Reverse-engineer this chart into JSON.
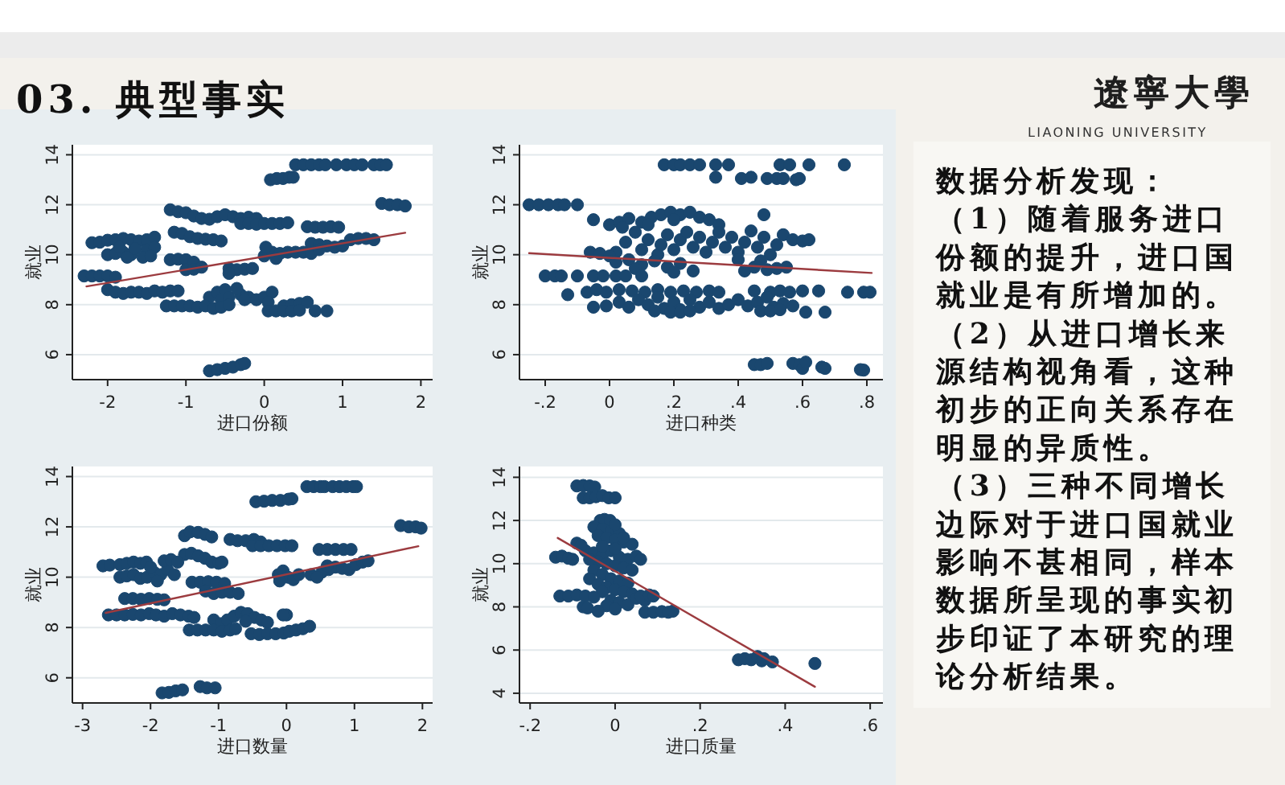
{
  "chart_data": [
    {
      "type": "other",
      "title": "03. 典型事实",
      "subtitle": "遼寧大學",
      "annotations": [
        "LIAONING UNIVERSITY"
      ]
    },
    {
      "type": "scatter",
      "xlabel": "进口份额",
      "ylabel": "就业",
      "xlim": [
        -2.45,
        2.15
      ],
      "ylim": [
        5,
        14.4
      ],
      "xticks": [
        -2,
        -1,
        0,
        1,
        2
      ],
      "yticks": [
        6,
        8,
        10,
        12,
        14
      ],
      "grid": "y",
      "marker": "circle",
      "series": [
        {
          "type": "scatter",
          "color": "#1a476f",
          "x": [
            0.4,
            0.5,
            0.6,
            0.7,
            0.78,
            0.92,
            1.05,
            1.15,
            1.25,
            1.4,
            1.48,
            1.56,
            0.08,
            0.16,
            0.24,
            0.32,
            0.37,
            1.5,
            1.6,
            1.7,
            1.8,
            -1.2,
            -1.1,
            -1.0,
            -0.9,
            -0.8,
            -0.7,
            -0.6,
            -0.5,
            -0.4,
            -0.3,
            -0.2,
            -0.1,
            -0.3,
            -0.2,
            -0.1,
            0.0,
            0.1,
            0.2,
            0.3,
            0.55,
            0.65,
            0.75,
            0.85,
            0.95,
            -1.15,
            -1.05,
            -0.95,
            -0.85,
            -0.75,
            -0.65,
            -0.55,
            -2.2,
            -2.1,
            -2.0,
            -1.9,
            -1.8,
            -1.7,
            -1.6,
            -1.5,
            -1.4,
            -2.0,
            -1.9,
            -1.8,
            -1.7,
            -1.5,
            -1.4,
            -1.85,
            -1.65,
            -1.55,
            -1.45,
            -1.75,
            0.6,
            0.7,
            0.8,
            0.9,
            1.0,
            1.1,
            1.2,
            1.3,
            1.4,
            0.0,
            0.1,
            0.2,
            0.3,
            0.4,
            0.5,
            0.6,
            0.15,
            0.02,
            0.7,
            -1.2,
            -1.1,
            -1.0,
            -0.9,
            -1.0,
            -0.9,
            -0.8,
            -0.45,
            -0.35,
            -0.25,
            -0.15,
            -0.45,
            -2.3,
            -2.2,
            -2.1,
            -2.0,
            -1.9,
            -2.0,
            -1.9,
            -1.8,
            -1.7,
            -1.6,
            -1.5,
            -1.4,
            -1.3,
            -1.2,
            -1.1,
            -0.7,
            -0.6,
            -0.5,
            -0.3,
            -0.2,
            -0.1,
            0.0,
            0.1,
            -0.55,
            -0.45,
            -0.35,
            -0.25,
            0.05,
            -1.25,
            -1.15,
            -1.05,
            -0.95,
            -0.85,
            -0.75,
            -0.65,
            -0.55,
            -0.45,
            0.25,
            0.35,
            0.45,
            0.55,
            0.05,
            0.15,
            0.25,
            0.35,
            0.45,
            0.65,
            0.8,
            -0.7,
            -0.6,
            -0.5,
            -0.4,
            -0.3,
            -0.25
          ],
          "values": [
            13.6,
            13.6,
            13.6,
            13.6,
            13.6,
            13.6,
            13.6,
            13.6,
            13.6,
            13.6,
            13.6,
            13.6,
            13.0,
            13.05,
            13.05,
            13.1,
            13.1,
            12.05,
            12.0,
            12.0,
            11.95,
            11.8,
            11.72,
            11.68,
            11.55,
            11.45,
            11.42,
            11.52,
            11.6,
            11.52,
            11.45,
            11.5,
            11.45,
            11.25,
            11.25,
            11.22,
            11.25,
            11.25,
            11.25,
            11.28,
            11.12,
            11.1,
            11.1,
            11.12,
            11.1,
            10.9,
            10.85,
            10.72,
            10.65,
            10.62,
            10.6,
            10.55,
            10.48,
            10.5,
            10.58,
            10.6,
            10.65,
            10.6,
            10.55,
            10.6,
            10.7,
            10.0,
            10.05,
            10.1,
            10.0,
            10.2,
            10.3,
            10.3,
            10.25,
            9.9,
            9.95,
            9.9,
            10.45,
            10.4,
            10.35,
            10.3,
            10.35,
            10.6,
            10.65,
            10.65,
            10.6,
            9.95,
            10.1,
            10.05,
            10.1,
            10.1,
            10.1,
            10.05,
            9.85,
            10.3,
            10.2,
            9.8,
            9.82,
            9.8,
            9.7,
            9.4,
            9.42,
            9.5,
            9.45,
            9.4,
            9.42,
            9.45,
            9.25,
            9.15,
            9.15,
            9.15,
            9.15,
            9.1,
            8.6,
            8.5,
            8.45,
            8.5,
            8.5,
            8.45,
            8.55,
            8.5,
            8.55,
            8.55,
            8.3,
            8.5,
            8.6,
            8.4,
            8.3,
            8.2,
            8.3,
            8.5,
            8.2,
            8.3,
            8.65,
            8.2,
            8.1,
            7.95,
            7.95,
            7.95,
            7.95,
            7.9,
            7.95,
            7.85,
            7.9,
            8.0,
            7.95,
            8.0,
            8.05,
            8.1,
            7.75,
            7.75,
            7.75,
            7.75,
            7.78,
            7.75,
            7.75,
            5.35,
            5.4,
            5.45,
            5.5,
            5.6,
            5.65
          ]
        },
        {
          "type": "line",
          "color": "#9c3b3f",
          "marker": "none",
          "x": [
            -2.27,
            1.8
          ],
          "values": [
            8.73,
            10.88
          ]
        }
      ]
    },
    {
      "type": "scatter",
      "xlabel": "进口种类",
      "ylabel": "就业",
      "xlim": [
        -0.28,
        0.85
      ],
      "ylim": [
        5,
        14.4
      ],
      "xticks": [
        {
          "value": -0.2,
          "label": "-.2"
        },
        0,
        {
          "value": 0.2,
          "label": ".2"
        },
        {
          "value": 0.4,
          "label": ".4"
        },
        {
          "value": 0.6,
          "label": ".6"
        },
        {
          "value": 0.8,
          "label": ".8"
        }
      ],
      "yticks": [
        6,
        8,
        10,
        12,
        14
      ],
      "grid": "y",
      "marker": "circle",
      "series": [
        {
          "type": "scatter",
          "color": "#1a476f",
          "x": [
            0.17,
            0.2,
            0.22,
            0.25,
            0.28,
            0.33,
            0.37,
            0.53,
            0.56,
            0.62,
            0.73,
            0.33,
            0.41,
            0.44,
            0.49,
            0.52,
            0.54,
            0.58,
            0.59,
            -0.25,
            -0.22,
            -0.19,
            -0.16,
            -0.14,
            -0.1,
            -0.05,
            0.48,
            0.0,
            0.03,
            0.06,
            0.1,
            0.13,
            0.16,
            0.19,
            0.22,
            0.25,
            0.28,
            0.31,
            0.2,
            0.12,
            0.34,
            0.04,
            0.02,
            0.05,
            0.08,
            0.1,
            0.12,
            0.15,
            0.16,
            0.18,
            0.2,
            0.22,
            0.24,
            0.26,
            0.28,
            0.3,
            0.32,
            0.34,
            0.36,
            0.38,
            0.4,
            0.42,
            0.44,
            0.46,
            0.48,
            0.5,
            0.52,
            0.54,
            0.57,
            0.6,
            0.62,
            -0.06,
            -0.03,
            0.0,
            0.02,
            0.06,
            0.1,
            0.14,
            0.18,
            0.22,
            0.26,
            0.2,
            0.08,
            0.42,
            0.45,
            0.49,
            0.52,
            0.55,
            0.4,
            0.47,
            -0.2,
            -0.17,
            -0.15,
            -0.1,
            -0.05,
            -0.02,
            0.02,
            0.05,
            0.1,
            -0.13,
            -0.07,
            -0.04,
            -0.01,
            0.03,
            0.07,
            0.11,
            0.15,
            0.19,
            0.23,
            0.27,
            0.31,
            0.34,
            0.45,
            0.5,
            0.53,
            0.56,
            0.6,
            0.65,
            0.74,
            0.79,
            0.81,
            -0.05,
            -0.01,
            0.03,
            0.06,
            0.09,
            0.12,
            0.15,
            0.17,
            0.2,
            0.22,
            0.25,
            0.28,
            0.31,
            0.34,
            0.37,
            0.4,
            0.43,
            0.46,
            0.49,
            0.51,
            0.54,
            0.57,
            0.14,
            0.19,
            0.22,
            0.25,
            0.47,
            0.5,
            0.53,
            0.61,
            0.67,
            0.45,
            0.47,
            0.49,
            0.57,
            0.59,
            0.6,
            0.61,
            0.66,
            0.67,
            0.78,
            0.79
          ],
          "values": [
            13.6,
            13.6,
            13.6,
            13.6,
            13.6,
            13.6,
            13.6,
            13.6,
            13.6,
            13.6,
            13.6,
            13.1,
            13.05,
            13.1,
            13.05,
            13.05,
            13.05,
            13.0,
            13.05,
            12.0,
            12.0,
            12.0,
            12.0,
            12.0,
            12.0,
            11.4,
            11.6,
            11.2,
            11.3,
            11.45,
            11.3,
            11.5,
            11.6,
            11.7,
            11.6,
            11.7,
            11.5,
            11.4,
            11.4,
            11.2,
            11.2,
            11.1,
            10.1,
            10.5,
            10.9,
            10.2,
            10.6,
            10.0,
            10.4,
            10.8,
            10.2,
            10.6,
            10.9,
            10.3,
            10.7,
            10.1,
            10.5,
            10.9,
            10.3,
            10.7,
            10.1,
            10.5,
            10.95,
            10.3,
            10.7,
            10.0,
            10.4,
            10.8,
            10.6,
            10.55,
            10.6,
            10.1,
            10.05,
            9.95,
            9.7,
            9.8,
            9.6,
            9.75,
            9.5,
            9.65,
            9.35,
            9.3,
            9.45,
            9.35,
            9.5,
            9.4,
            9.45,
            9.5,
            9.8,
            9.75,
            9.15,
            9.15,
            9.15,
            9.15,
            9.15,
            9.15,
            9.15,
            9.15,
            9.15,
            8.4,
            8.5,
            8.6,
            8.5,
            8.6,
            8.55,
            8.5,
            8.6,
            8.5,
            8.55,
            8.5,
            8.55,
            8.5,
            8.55,
            8.5,
            8.55,
            8.5,
            8.55,
            8.55,
            8.5,
            8.5,
            8.5,
            7.9,
            7.95,
            8.1,
            7.9,
            8.2,
            8.0,
            8.3,
            7.85,
            8.1,
            7.8,
            8.2,
            7.9,
            8.1,
            7.85,
            8.0,
            8.2,
            7.95,
            8.1,
            8.3,
            7.9,
            8.05,
            7.95,
            7.75,
            7.7,
            7.7,
            7.75,
            7.75,
            7.75,
            7.8,
            7.7,
            7.7,
            5.6,
            5.6,
            5.65,
            5.65,
            5.6,
            5.45,
            5.7,
            5.5,
            5.45,
            5.4,
            5.38
          ]
        },
        {
          "type": "line",
          "color": "#9c3b3f",
          "marker": "none",
          "x": [
            -0.25,
            0.815
          ],
          "values": [
            10.06,
            9.27
          ]
        }
      ]
    },
    {
      "type": "scatter",
      "xlabel": "进口数量",
      "ylabel": "就业",
      "xlim": [
        -3.15,
        2.15
      ],
      "ylim": [
        5,
        14.4
      ],
      "xticks": [
        -3,
        -2,
        -1,
        0,
        1,
        2
      ],
      "yticks": [
        6,
        8,
        10,
        12,
        14
      ],
      "grid": "y",
      "marker": "circle",
      "series": [
        {
          "type": "scatter",
          "color": "#1a476f",
          "x": [
            0.3,
            0.4,
            0.5,
            0.56,
            0.68,
            0.78,
            0.88,
            0.98,
            1.03,
            -0.45,
            -0.33,
            -0.21,
            -0.09,
            0.03,
            0.08,
            1.68,
            1.8,
            1.9,
            1.98,
            -1.5,
            -1.42,
            -1.3,
            -1.2,
            -1.1,
            -0.83,
            -0.72,
            -0.6,
            -0.48,
            -0.38,
            -0.5,
            -0.38,
            -0.26,
            -0.14,
            -0.02,
            0.08,
            0.48,
            0.6,
            0.72,
            0.84,
            0.95,
            -1.5,
            -1.4,
            -1.3,
            -1.2,
            -1.1,
            -1.0,
            -0.95,
            -2.7,
            -2.6,
            -2.45,
            -2.35,
            -2.25,
            -2.15,
            -2.06,
            -2.45,
            -2.35,
            -2.25,
            -2.15,
            -2.05,
            -1.95,
            -1.85,
            -1.75,
            -1.65,
            -1.9,
            -2.0,
            -1.8,
            -1.7,
            -1.6,
            0.52,
            0.62,
            0.72,
            0.82,
            0.92,
            1.02,
            1.12,
            1.2,
            0.6,
            -0.12,
            -0.05,
            0.02,
            0.1,
            0.18,
            0.36,
            0.45,
            -0.1,
            -1.39,
            -1.27,
            -1.15,
            -1.03,
            -0.91,
            -1.19,
            -1.07,
            -0.95,
            -0.83,
            -0.71,
            -2.38,
            -2.26,
            -2.14,
            -2.02,
            -1.9,
            -1.8,
            -2.62,
            -2.5,
            -2.38,
            -2.26,
            -2.14,
            -2.02,
            -1.92,
            -1.8,
            -1.68,
            -1.56,
            -1.44,
            -1.36,
            -1.07,
            -0.97,
            -0.87,
            -0.77,
            -0.67,
            -0.57,
            -0.47,
            -0.37,
            -0.28,
            -0.6,
            0.0,
            -0.05,
            -1.43,
            -1.31,
            -1.19,
            -1.07,
            -0.95,
            -0.83,
            -0.75,
            -0.52,
            -0.4,
            -0.28,
            -0.16,
            -0.04,
            0.04,
            0.14,
            0.24,
            0.34,
            -1.83,
            -1.73,
            -1.63,
            -1.53,
            -1.27,
            -1.17,
            -1.05
          ],
          "values": [
            13.6,
            13.6,
            13.6,
            13.6,
            13.6,
            13.6,
            13.6,
            13.6,
            13.6,
            13.0,
            13.02,
            13.05,
            13.05,
            13.1,
            13.12,
            12.05,
            12.0,
            12.0,
            11.95,
            11.65,
            11.8,
            11.78,
            11.7,
            11.6,
            11.5,
            11.45,
            11.45,
            11.5,
            11.4,
            11.25,
            11.25,
            11.25,
            11.25,
            11.25,
            11.25,
            11.1,
            11.1,
            11.1,
            11.1,
            11.1,
            10.9,
            10.95,
            10.85,
            10.75,
            10.6,
            10.55,
            10.6,
            10.45,
            10.48,
            10.5,
            10.55,
            10.6,
            10.55,
            10.6,
            10.0,
            10.05,
            10.1,
            9.95,
            10.0,
            10.2,
            10.1,
            10.3,
            10.1,
            9.85,
            10.4,
            10.65,
            10.7,
            10.6,
            10.2,
            10.3,
            10.4,
            10.35,
            10.3,
            10.5,
            10.6,
            10.65,
            10.45,
            10.1,
            10.25,
            10.0,
            9.9,
            10.1,
            10.1,
            10.0,
            9.85,
            9.8,
            9.8,
            9.82,
            9.8,
            9.75,
            9.45,
            9.35,
            9.4,
            9.4,
            9.35,
            9.15,
            9.15,
            9.12,
            9.15,
            9.12,
            9.1,
            8.5,
            8.5,
            8.5,
            8.52,
            8.5,
            8.55,
            8.5,
            8.45,
            8.55,
            8.5,
            8.45,
            8.4,
            8.3,
            8.15,
            8.3,
            8.45,
            8.6,
            8.55,
            8.4,
            8.3,
            8.2,
            8.25,
            8.5,
            8.5,
            7.9,
            7.9,
            7.9,
            7.9,
            7.85,
            7.9,
            7.95,
            7.75,
            7.72,
            7.75,
            7.75,
            7.78,
            7.85,
            7.9,
            7.95,
            8.05,
            5.4,
            5.42,
            5.48,
            5.52,
            5.65,
            5.6,
            5.6
          ]
        },
        {
          "type": "line",
          "color": "#9c3b3f",
          "marker": "none",
          "x": [
            -2.66,
            1.94
          ],
          "values": [
            8.58,
            11.23
          ]
        }
      ]
    },
    {
      "type": "scatter",
      "xlabel": "进口质量",
      "ylabel": "就业",
      "xlim": [
        -0.225,
        0.63
      ],
      "ylim": [
        3.55,
        14.5
      ],
      "xticks": [
        {
          "value": -0.2,
          "label": "-.2"
        },
        0,
        {
          "value": 0.2,
          "label": ".2"
        },
        {
          "value": 0.4,
          "label": ".4"
        },
        {
          "value": 0.6,
          "label": ".6"
        }
      ],
      "yticks": [
        4,
        6,
        8,
        10,
        12,
        14
      ],
      "grid": "y",
      "marker": "circle",
      "series": [
        {
          "type": "scatter",
          "color": "#1a476f",
          "x": [
            -0.09,
            -0.075,
            -0.06,
            -0.048,
            -0.075,
            -0.06,
            -0.045,
            -0.03,
            -0.015,
            0.0,
            -0.035,
            -0.025,
            -0.012,
            -0.05,
            -0.03,
            -0.01,
            0.01,
            -0.04,
            -0.02,
            0.0,
            0.02,
            0.04,
            -0.07,
            -0.05,
            -0.03,
            -0.01,
            0.01,
            0.03,
            0.05,
            0.06,
            -0.04,
            -0.02,
            0.0,
            0.02,
            0.04,
            -0.05,
            -0.03,
            -0.01,
            0.01,
            0.03,
            -0.06,
            -0.04,
            -0.02,
            0.0,
            0.02,
            0.04,
            -0.03,
            -0.01,
            0.01,
            0.03,
            -0.02,
            0.0,
            -0.04,
            0.05,
            0.07,
            -0.03,
            -0.06,
            0.0,
            0.02,
            0.0,
            -0.14,
            -0.125,
            -0.11,
            -0.1,
            -0.09,
            -0.08,
            -0.13,
            -0.11,
            -0.09,
            -0.07,
            -0.05,
            0.06,
            0.08,
            0.09,
            0.07,
            0.09,
            0.11,
            0.125,
            0.136,
            -0.075,
            -0.065,
            0.29,
            0.305,
            0.32,
            0.335,
            0.345,
            0.35,
            0.37,
            0.47
          ],
          "values": [
            13.6,
            13.62,
            13.6,
            13.55,
            13.05,
            13.05,
            13.1,
            13.15,
            13.05,
            13.05,
            12.0,
            12.05,
            12.0,
            11.7,
            11.6,
            11.5,
            11.4,
            11.3,
            11.2,
            11.1,
            11.0,
            10.9,
            10.6,
            10.5,
            10.4,
            10.6,
            10.3,
            10.2,
            10.35,
            10.2,
            10.1,
            10.0,
            9.9,
            9.8,
            9.7,
            9.7,
            9.5,
            9.3,
            9.2,
            9.1,
            9.3,
            9.05,
            8.9,
            8.8,
            8.7,
            8.6,
            8.7,
            8.3,
            8.2,
            8.1,
            8.05,
            7.9,
            7.8,
            8.4,
            8.3,
            10.8,
            10.2,
            10.7,
            11.2,
            11.8,
            10.3,
            10.35,
            10.25,
            10.2,
            10.95,
            10.85,
            8.5,
            8.5,
            8.55,
            8.5,
            8.45,
            8.5,
            8.55,
            8.5,
            7.75,
            7.75,
            7.78,
            7.75,
            7.8,
            8.0,
            7.95,
            5.55,
            5.6,
            5.55,
            5.7,
            5.5,
            5.6,
            5.45,
            5.38
          ]
        },
        {
          "type": "line",
          "color": "#9c3b3f",
          "marker": "none",
          "x": [
            -0.135,
            0.47
          ],
          "values": [
            11.19,
            4.3
          ]
        }
      ]
    },
    {
      "type": "other",
      "title": "数据分析发现：",
      "annotations": [
        "（1）随着服务进口份额的提升，进口国就业是有所增加的。",
        "（2）从进口增长来源结构视角看，这种初步的正向关系存在明显的异质性。",
        "（3）三种不同增长边际对于进口国就业影响不甚相同，样本数据所呈现的事实初步印证了本研究的理论分析结果。"
      ]
    }
  ]
}
